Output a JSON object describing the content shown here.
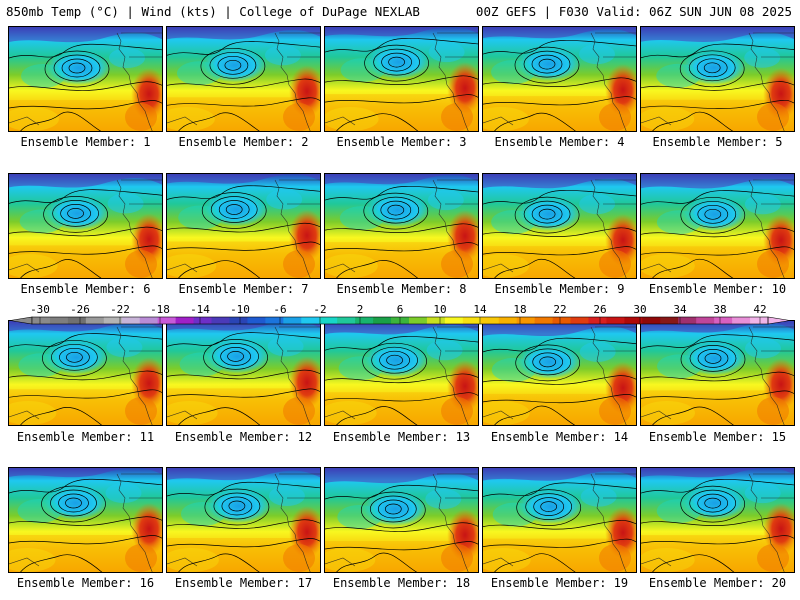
{
  "header": {
    "left_title": "850mb Temp (°C) | Wind (kts) | College of DuPage NEXLAB",
    "right_title": "00Z GEFS | F030 Valid: 06Z SUN JUN 08 2025"
  },
  "members": [
    {
      "label": "Ensemble Member: 1"
    },
    {
      "label": "Ensemble Member: 2"
    },
    {
      "label": "Ensemble Member: 3"
    },
    {
      "label": "Ensemble Member: 4"
    },
    {
      "label": "Ensemble Member: 5"
    },
    {
      "label": "Ensemble Member: 6"
    },
    {
      "label": "Ensemble Member: 7"
    },
    {
      "label": "Ensemble Member: 8"
    },
    {
      "label": "Ensemble Member: 9"
    },
    {
      "label": "Ensemble Member: 10"
    },
    {
      "label": "Ensemble Member: 11"
    },
    {
      "label": "Ensemble Member: 12"
    },
    {
      "label": "Ensemble Member: 13"
    },
    {
      "label": "Ensemble Member: 14"
    },
    {
      "label": "Ensemble Member: 15"
    },
    {
      "label": "Ensemble Member: 16"
    },
    {
      "label": "Ensemble Member: 17"
    },
    {
      "label": "Ensemble Member: 18"
    },
    {
      "label": "Ensemble Member: 19"
    },
    {
      "label": "Ensemble Member: 20"
    }
  ],
  "colorbar": {
    "ticks": [
      "-30",
      "-26",
      "-22",
      "-18",
      "-14",
      "-10",
      "-6",
      "-2",
      "2",
      "6",
      "10",
      "14",
      "18",
      "22",
      "26",
      "30",
      "34",
      "38",
      "42"
    ],
    "colors": [
      "#8a8a8a",
      "#7e7e7e",
      "#707070",
      "#9a9a9a",
      "#b4b4b4",
      "#c8b4d8",
      "#b98cd6",
      "#c85ad9",
      "#a020c8",
      "#6e2fc8",
      "#4b3ab8",
      "#2a44b5",
      "#1e5ad0",
      "#1b74dd",
      "#1aa0e6",
      "#1fc8f0",
      "#18d6c8",
      "#20c89a",
      "#18b46e",
      "#1aa048",
      "#3cb43c",
      "#7ccc2a",
      "#c8e020",
      "#f8f820",
      "#f8e010",
      "#f8c808",
      "#f8b000",
      "#f89600",
      "#f07800",
      "#e85a00",
      "#e03c10",
      "#d82020",
      "#c81414",
      "#b00a0a",
      "#900808",
      "#881818",
      "#a0306e",
      "#c0469a",
      "#d860c0",
      "#e890d8",
      "#f0b4e8"
    ]
  }
}
